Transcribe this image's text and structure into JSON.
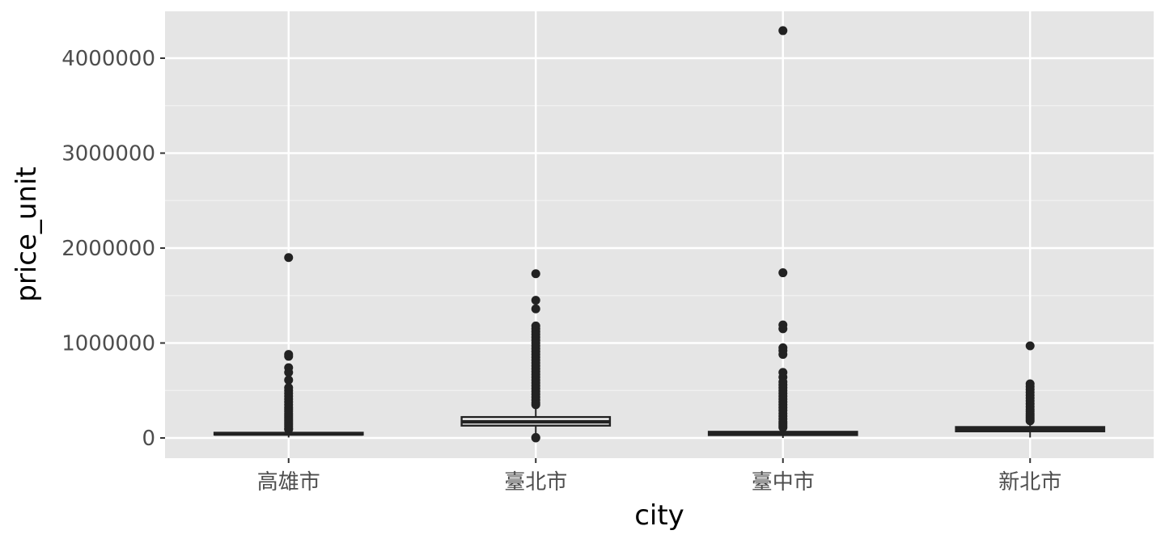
{
  "chart_data": {
    "type": "boxplot",
    "title": "",
    "xlabel": "city",
    "ylabel": "price_unit",
    "ylim": [
      -200000,
      4500000
    ],
    "yticks": [
      0,
      1000000,
      2000000,
      3000000,
      4000000
    ],
    "ytick_labels": [
      "0",
      "1000000",
      "2000000",
      "3000000",
      "4000000"
    ],
    "categories": [
      "高雄市",
      "臺北市",
      "臺中市",
      "新北市"
    ],
    "grid": true,
    "legend": "none",
    "colors": {
      "panel_bg": "#e5e5e5",
      "grid_major": "#ffffff",
      "grid_minor": "#f2f2f2",
      "box_fill": "#ffffff",
      "box_stroke": "#222222",
      "outlier": "#222222",
      "tick_text": "#4d4d4d",
      "tick_mark": "#333333",
      "axis_title": "#000000"
    },
    "series": [
      {
        "category": "高雄市",
        "q1": 35000,
        "median": 43000,
        "q3": 55000,
        "whisker_low": 5000,
        "whisker_high": 80000,
        "outliers": [
          1900000,
          880000,
          860000,
          740000,
          690000,
          610000,
          530000,
          500000,
          470000,
          440000,
          410000,
          380000,
          350000,
          320000,
          300000,
          280000,
          260000,
          240000,
          220000,
          200000,
          180000,
          160000,
          140000,
          120000,
          100000,
          90000
        ]
      },
      {
        "category": "臺北市",
        "q1": 130000,
        "median": 170000,
        "q3": 220000,
        "whisker_low": 20000,
        "whisker_high": 330000,
        "outliers": [
          1730000,
          1450000,
          1360000,
          1180000,
          1150000,
          1120000,
          1090000,
          1060000,
          1030000,
          1000000,
          970000,
          940000,
          910000,
          880000,
          850000,
          820000,
          790000,
          760000,
          730000,
          700000,
          670000,
          640000,
          610000,
          580000,
          550000,
          520000,
          490000,
          460000,
          430000,
          400000,
          370000,
          350000,
          5000,
          0
        ]
      },
      {
        "category": "臺中市",
        "q1": 30000,
        "median": 45000,
        "q3": 65000,
        "whisker_low": 0,
        "whisker_high": 100000,
        "outliers": [
          4290000,
          1740000,
          1190000,
          1150000,
          950000,
          920000,
          880000,
          690000,
          640000,
          590000,
          560000,
          530000,
          500000,
          470000,
          440000,
          410000,
          380000,
          350000,
          320000,
          290000,
          260000,
          230000,
          200000,
          170000,
          150000,
          130000,
          110000
        ]
      },
      {
        "category": "新北市",
        "q1": 70000,
        "median": 90000,
        "q3": 115000,
        "whisker_low": 5000,
        "whisker_high": 150000,
        "outliers": [
          970000,
          570000,
          540000,
          510000,
          480000,
          450000,
          420000,
          390000,
          360000,
          330000,
          300000,
          280000,
          260000,
          240000,
          220000,
          200000,
          180000
        ]
      }
    ]
  }
}
